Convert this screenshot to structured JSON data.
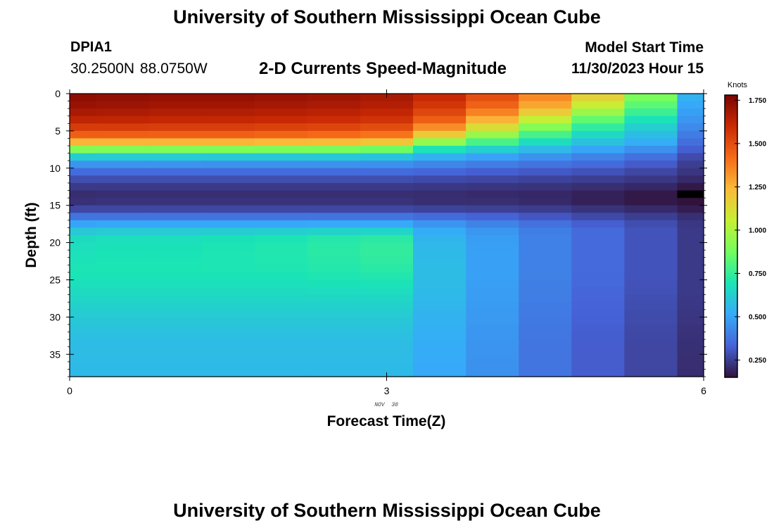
{
  "page_title": "University of Southern Mississippi Ocean Cube",
  "footer_title": "University of Southern Mississippi Ocean Cube",
  "station": {
    "id": "DPIA1",
    "coords": "30.2500N  88.0750W"
  },
  "plot_title": "2-D Currents Speed-Magnitude",
  "model": {
    "label": "Model Start Time",
    "time": "11/30/2023 Hour 15"
  },
  "chart_data": {
    "type": "heatmap",
    "title": "2-D Currents Speed-Magnitude",
    "xlabel": "Forecast Time(Z)",
    "ylabel": "Depth (ft)",
    "x_ticks": [
      "0",
      "3",
      "6"
    ],
    "x_tick_values": [
      0,
      3,
      6
    ],
    "x_date_label": "NOV  30",
    "y_ticks": [
      "0",
      "5",
      "10",
      "15",
      "20",
      "25",
      "30",
      "35"
    ],
    "y_tick_values": [
      0,
      5,
      10,
      15,
      20,
      25,
      30,
      35
    ],
    "xlim": [
      0,
      6
    ],
    "ylim": [
      0,
      38
    ],
    "x_edges": [
      0,
      0.25,
      0.75,
      1.25,
      1.75,
      2.25,
      2.75,
      3.25,
      3.75,
      4.25,
      4.75,
      5.25,
      5.75,
      6.0
    ],
    "depth_step": 1,
    "speed_profiles": [
      {
        "depth": 0,
        "values": [
          1.75,
          1.74,
          1.73,
          1.73,
          1.72,
          1.71,
          1.69,
          1.62,
          1.52,
          1.38,
          1.2,
          0.92,
          0.55
        ]
      },
      {
        "depth": 2,
        "values": [
          1.7,
          1.69,
          1.68,
          1.68,
          1.67,
          1.66,
          1.64,
          1.55,
          1.42,
          1.25,
          1.02,
          0.8,
          0.5
        ]
      },
      {
        "depth": 4,
        "values": [
          1.6,
          1.6,
          1.59,
          1.59,
          1.58,
          1.57,
          1.55,
          1.42,
          1.2,
          0.98,
          0.78,
          0.65,
          0.45
        ]
      },
      {
        "depth": 6,
        "values": [
          1.4,
          1.4,
          1.4,
          1.4,
          1.39,
          1.38,
          1.35,
          1.1,
          0.88,
          0.72,
          0.62,
          0.55,
          0.38
        ]
      },
      {
        "depth": 7,
        "values": [
          1.1,
          1.1,
          1.1,
          1.1,
          1.09,
          1.08,
          1.05,
          0.78,
          0.7,
          0.62,
          0.55,
          0.5,
          0.35
        ]
      },
      {
        "depth": 8,
        "values": [
          0.72,
          0.71,
          0.71,
          0.7,
          0.7,
          0.7,
          0.68,
          0.6,
          0.55,
          0.5,
          0.45,
          0.4,
          0.3
        ]
      },
      {
        "depth": 9,
        "values": [
          0.52,
          0.52,
          0.52,
          0.51,
          0.51,
          0.51,
          0.5,
          0.47,
          0.44,
          0.41,
          0.38,
          0.34,
          0.26
        ]
      },
      {
        "depth": 10,
        "values": [
          0.4,
          0.4,
          0.4,
          0.4,
          0.4,
          0.4,
          0.4,
          0.38,
          0.36,
          0.34,
          0.32,
          0.29,
          0.24
        ]
      },
      {
        "depth": 11,
        "values": [
          0.31,
          0.31,
          0.31,
          0.31,
          0.31,
          0.31,
          0.31,
          0.3,
          0.29,
          0.28,
          0.27,
          0.25,
          0.22
        ]
      },
      {
        "depth": 12,
        "values": [
          0.26,
          0.26,
          0.26,
          0.26,
          0.26,
          0.26,
          0.26,
          0.25,
          0.25,
          0.24,
          0.23,
          0.22,
          0.19
        ]
      },
      {
        "depth": 13,
        "values": [
          0.22,
          0.22,
          0.22,
          0.22,
          0.22,
          0.22,
          0.22,
          0.22,
          0.21,
          0.21,
          0.2,
          0.18,
          0.14
        ]
      },
      {
        "depth": 14,
        "values": [
          0.2,
          0.21,
          0.21,
          0.21,
          0.21,
          0.21,
          0.21,
          0.2,
          0.2,
          0.19,
          0.17,
          0.15,
          0.0
        ]
      },
      {
        "depth": 15,
        "values": [
          0.24,
          0.24,
          0.24,
          0.24,
          0.24,
          0.24,
          0.24,
          0.23,
          0.23,
          0.22,
          0.2,
          0.18,
          0.15
        ]
      },
      {
        "depth": 16,
        "values": [
          0.3,
          0.3,
          0.3,
          0.3,
          0.3,
          0.3,
          0.3,
          0.29,
          0.28,
          0.27,
          0.25,
          0.23,
          0.2
        ]
      },
      {
        "depth": 17,
        "values": [
          0.45,
          0.45,
          0.45,
          0.45,
          0.45,
          0.45,
          0.45,
          0.42,
          0.38,
          0.34,
          0.3,
          0.27,
          0.23
        ]
      },
      {
        "depth": 18,
        "values": [
          0.55,
          0.56,
          0.56,
          0.56,
          0.56,
          0.57,
          0.57,
          0.5,
          0.45,
          0.4,
          0.35,
          0.3,
          0.24
        ]
      },
      {
        "depth": 19,
        "values": [
          0.66,
          0.67,
          0.67,
          0.68,
          0.69,
          0.71,
          0.72,
          0.54,
          0.48,
          0.41,
          0.35,
          0.3,
          0.24
        ]
      },
      {
        "depth": 21,
        "values": [
          0.68,
          0.69,
          0.69,
          0.7,
          0.71,
          0.73,
          0.75,
          0.56,
          0.49,
          0.41,
          0.35,
          0.3,
          0.24
        ]
      },
      {
        "depth": 24,
        "values": [
          0.7,
          0.7,
          0.7,
          0.7,
          0.7,
          0.71,
          0.72,
          0.57,
          0.49,
          0.41,
          0.35,
          0.3,
          0.24
        ]
      },
      {
        "depth": 27,
        "values": [
          0.66,
          0.66,
          0.66,
          0.66,
          0.66,
          0.66,
          0.66,
          0.56,
          0.48,
          0.4,
          0.34,
          0.29,
          0.24
        ]
      },
      {
        "depth": 30,
        "values": [
          0.61,
          0.61,
          0.61,
          0.61,
          0.61,
          0.61,
          0.61,
          0.54,
          0.47,
          0.39,
          0.33,
          0.28,
          0.23
        ]
      },
      {
        "depth": 33,
        "values": [
          0.57,
          0.57,
          0.57,
          0.57,
          0.57,
          0.57,
          0.57,
          0.52,
          0.46,
          0.38,
          0.32,
          0.27,
          0.22
        ]
      },
      {
        "depth": 38,
        "values": [
          0.56,
          0.56,
          0.56,
          0.56,
          0.56,
          0.56,
          0.56,
          0.51,
          0.45,
          0.38,
          0.32,
          0.27,
          0.21
        ]
      }
    ],
    "colorbar": {
      "label": "Knots",
      "min": 0.15,
      "max": 1.78,
      "ticks": [
        1.75,
        1.5,
        1.25,
        1.0,
        0.75,
        0.5,
        0.25
      ],
      "tick_labels": [
        "1.750",
        "1.500",
        "1.250",
        "1.000",
        "0.750",
        "0.500",
        "0.250"
      ],
      "palette": [
        "#30123b",
        "#4662d7",
        "#36aaf9",
        "#1ae4b6",
        "#72fe5e",
        "#c7ef34",
        "#faba39",
        "#f66b19",
        "#ca2a04",
        "#7a0403"
      ]
    }
  }
}
